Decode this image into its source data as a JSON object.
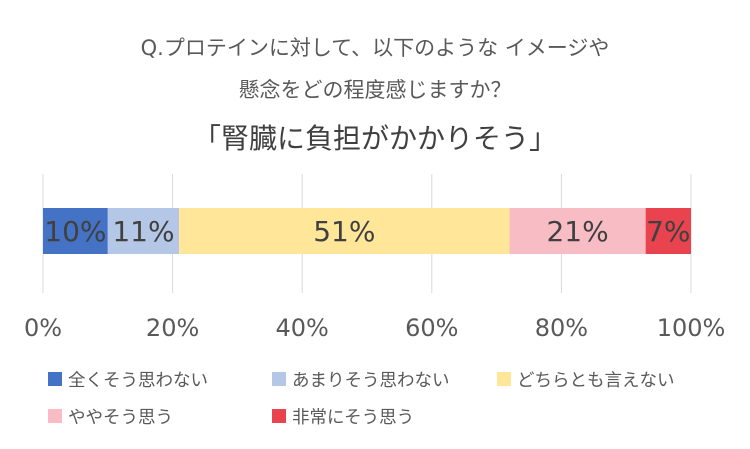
{
  "header": {
    "line1": "Q.プロテインに対して、以下のような イメージや",
    "line2": "懸念をどの程度感じますか？",
    "line3": "「腎臓に負担がかかりそう」"
  },
  "chart_data": {
    "type": "bar",
    "orientation": "horizontal",
    "stacked": true,
    "stacked_percent": true,
    "title": "「腎臓に負担がかかりそう」",
    "xlim": [
      0,
      100
    ],
    "x_ticks": [
      0,
      20,
      40,
      60,
      80,
      100
    ],
    "x_tick_labels": [
      "0%",
      "20%",
      "40%",
      "60%",
      "80%",
      "100%"
    ],
    "grid": "vertical",
    "legend_position": "bottom",
    "series": [
      {
        "name": "全くそう思わない",
        "value": 10,
        "label": "10%",
        "color": "#4472c4"
      },
      {
        "name": "あまりそう思わない",
        "value": 11,
        "label": "11%",
        "color": "#b4c7e7"
      },
      {
        "name": "どちらとも言えない",
        "value": 51,
        "label": "51%",
        "color": "#ffe699"
      },
      {
        "name": "ややそう思う",
        "value": 21,
        "label": "21%",
        "color": "#f8bcc4"
      },
      {
        "name": "非常にそう思う",
        "value": 7,
        "label": "7%",
        "color": "#e8434f"
      }
    ]
  }
}
